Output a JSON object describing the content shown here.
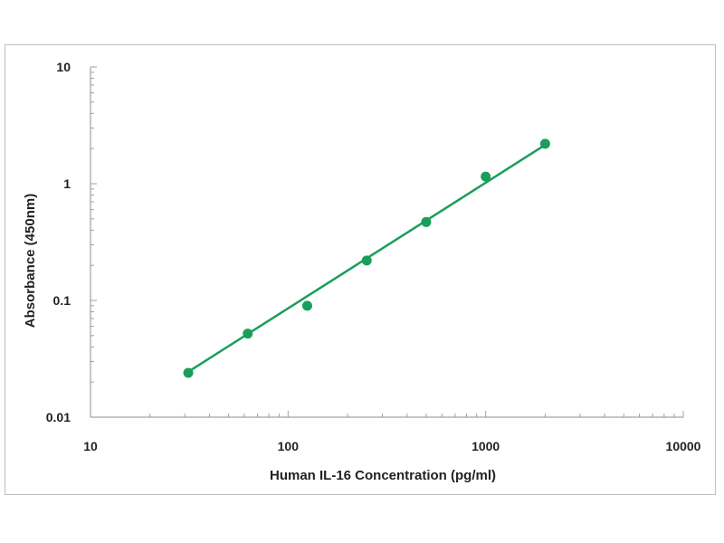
{
  "chart_data": {
    "type": "scatter",
    "title": "",
    "xlabel": "Human IL-16 Concentration (pg/ml)",
    "ylabel": "Absorbance (450nm)",
    "xscale": "log",
    "yscale": "log",
    "xlim": [
      10,
      10000
    ],
    "ylim": [
      0.01,
      10
    ],
    "xticks": [
      "10",
      "100",
      "1000",
      "10000"
    ],
    "yticks": [
      "0.01",
      "0.1",
      "1",
      "10"
    ],
    "grid": false,
    "legend": "none",
    "series": [
      {
        "x": [
          31.25,
          62.5,
          125,
          250,
          500,
          1000,
          2000
        ],
        "y": [
          0.024,
          0.052,
          0.09,
          0.22,
          0.47,
          1.15,
          2.2
        ],
        "color": "#1a9e5c",
        "marker": "circle",
        "fit_line": {
          "type": "power",
          "x": [
            31.25,
            2000
          ],
          "y": [
            0.0245,
            2.15
          ]
        }
      }
    ]
  },
  "colors": {
    "series": "#1a9e5c",
    "axis": "#a0a0a0",
    "frame": "#bfbfbf",
    "text": "#222222"
  }
}
